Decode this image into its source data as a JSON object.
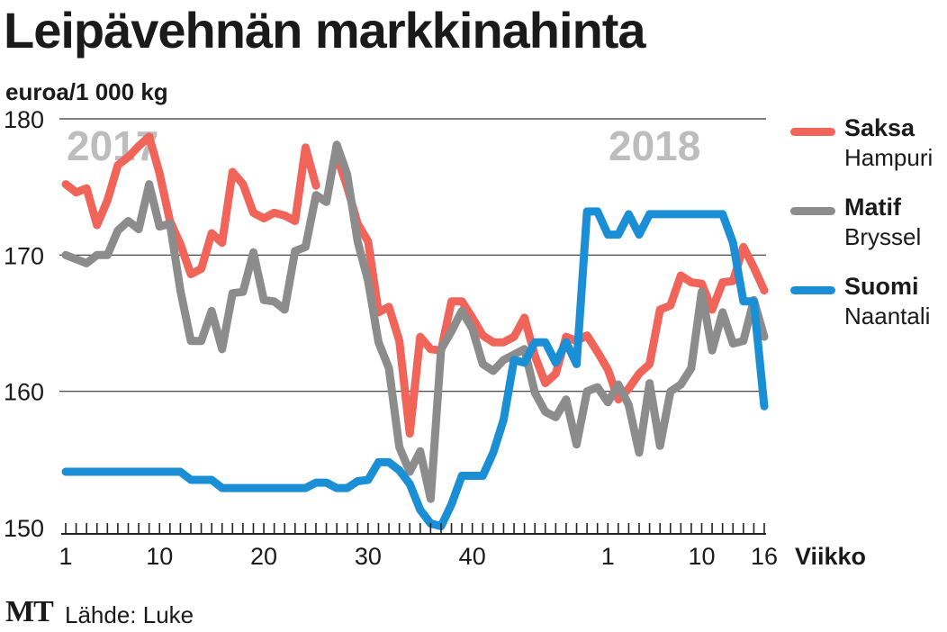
{
  "title": "Leipävehnän markkinahinta",
  "unit_label": "euroa/1 000 kg",
  "source_label": "Lähde: Luke",
  "logo_text": "MT",
  "legend": [
    {
      "name": "Saksa",
      "sub": "Hampuri",
      "color": "#f0645a"
    },
    {
      "name": "Matif",
      "sub": "Bryssel",
      "color": "#8c8c8c"
    },
    {
      "name": "Suomi",
      "sub": "Naantali",
      "color": "#1a8fd6"
    }
  ],
  "chart_data": {
    "type": "line",
    "title": "Leipävehnän markkinahinta",
    "ylabel": "euroa/1 000 kg",
    "xlabel": "Viikko",
    "ylim": [
      150,
      180
    ],
    "y_ticks": [
      150,
      160,
      170,
      180
    ],
    "x_tick_labels": [
      "1",
      "10",
      "20",
      "30",
      "40",
      "1",
      "10",
      "16"
    ],
    "x_axis_title": "Viikko",
    "year_labels": [
      "2017",
      "2018"
    ],
    "week_index_range": [
      1,
      68
    ],
    "grid": "horizontal",
    "legend_position": "right",
    "series": [
      {
        "name": "Saksa",
        "color": "#f0645a",
        "values": [
          175.2,
          174.6,
          174.9,
          172.2,
          174.0,
          176.6,
          177.2,
          178.0,
          178.7,
          176.0,
          172.5,
          170.8,
          168.6,
          169.0,
          171.6,
          170.9,
          176.1,
          175.2,
          173.1,
          172.7,
          173.1,
          172.9,
          172.5,
          177.9,
          175.1,
          null,
          177.3,
          175.0,
          172.3,
          171.0,
          165.8,
          166.2,
          163.7,
          156.9,
          164.0,
          163.1,
          163.0,
          166.6,
          166.6,
          165.4,
          164.1,
          163.6,
          163.6,
          164.0,
          165.4,
          162.6,
          160.6,
          161.3,
          164.0,
          163.7,
          164.1,
          162.9,
          161.6,
          159.4,
          160.2,
          161.3,
          162.0,
          166.0,
          166.3,
          168.5,
          168.0,
          167.9,
          166.0,
          168.0,
          168.1,
          170.6,
          169.1,
          167.4
        ]
      },
      {
        "name": "Matif",
        "color": "#8c8c8c",
        "values": [
          170.0,
          169.7,
          169.4,
          170.0,
          170.0,
          171.8,
          172.5,
          171.9,
          175.2,
          172.1,
          172.3,
          167.4,
          163.7,
          163.7,
          165.9,
          163.1,
          167.2,
          167.3,
          170.2,
          166.7,
          166.6,
          166.0,
          170.3,
          170.6,
          174.4,
          173.9,
          178.1,
          175.9,
          171.0,
          168.1,
          163.6,
          161.7,
          155.9,
          154.1,
          155.6,
          152.1,
          163.1,
          164.4,
          165.9,
          164.6,
          162.0,
          161.5,
          162.3,
          162.7,
          163.1,
          159.9,
          158.5,
          158.1,
          159.4,
          156.1,
          160.0,
          160.3,
          159.2,
          160.5,
          159.0,
          155.5,
          160.6,
          156.0,
          160.0,
          160.5,
          161.7,
          167.3,
          163.0,
          165.8,
          163.5,
          163.7,
          166.7,
          164.0
        ]
      },
      {
        "name": "Suomi",
        "color": "#1a8fd6",
        "values": [
          154.1,
          154.1,
          154.1,
          154.1,
          154.1,
          154.1,
          154.1,
          154.1,
          154.1,
          154.1,
          154.1,
          154.1,
          153.5,
          153.5,
          153.5,
          152.9,
          152.9,
          152.9,
          152.9,
          152.9,
          152.9,
          152.9,
          152.9,
          152.9,
          153.3,
          153.3,
          152.9,
          152.9,
          153.4,
          153.5,
          154.8,
          154.8,
          154.2,
          153.2,
          151.3,
          150.3,
          150.1,
          151.7,
          153.8,
          153.8,
          153.8,
          155.5,
          157.9,
          162.3,
          162.1,
          163.6,
          163.6,
          162.1,
          163.6,
          162.0,
          173.2,
          173.2,
          171.5,
          171.5,
          173.0,
          171.5,
          173.0,
          173.0,
          173.0,
          173.0,
          173.0,
          173.0,
          173.0,
          173.0,
          170.9,
          166.6,
          166.6,
          158.9
        ]
      }
    ]
  }
}
